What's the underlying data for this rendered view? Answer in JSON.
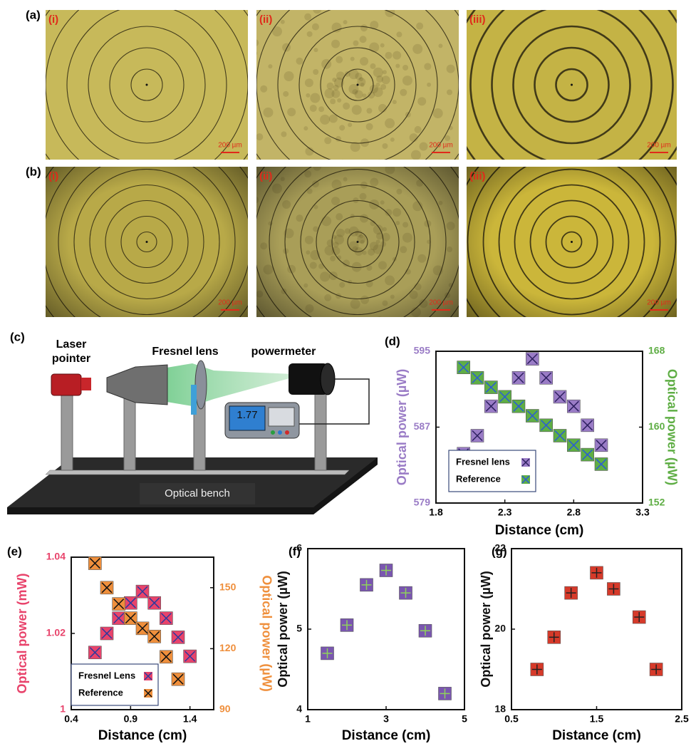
{
  "figure": {
    "row_labels": [
      "(a)",
      "(b)"
    ],
    "micrographs": [
      [
        {
          "label": "(i)",
          "scale": "200 µm"
        },
        {
          "label": "(ii)",
          "scale": "200 µm"
        },
        {
          "label": "(iii)",
          "scale": "200 µm"
        }
      ],
      [
        {
          "label": "(i)",
          "scale": "200 µm"
        },
        {
          "label": "(ii)",
          "scale": "200 µm"
        },
        {
          "label": "(iii)",
          "scale": "200 µm"
        }
      ]
    ]
  },
  "setup": {
    "label": "(c)",
    "laser": [
      "Laser",
      "pointer"
    ],
    "lens": "Fresnel lens",
    "meter": "powermeter",
    "display": "1.77",
    "bench": "Optical bench"
  },
  "chart_data": [
    {
      "type": "scatter",
      "label": "(d)",
      "xlabel": "Distance (cm)",
      "ylabel": "Optical power (µW)",
      "y2label": "Optical power (µW)",
      "xlim": [
        1.8,
        3.3
      ],
      "xticks": [
        1.8,
        2.3,
        2.8,
        3.3
      ],
      "ylim": [
        579,
        595
      ],
      "yticks": [
        579,
        587,
        595
      ],
      "y2lim": [
        152,
        168
      ],
      "y2ticks": [
        152,
        160,
        168
      ],
      "marker": "x-square",
      "legend": "lower-left",
      "series": [
        {
          "name": "Fresnel lens",
          "color": "#9a7cc6",
          "line_color": "#2e2060",
          "x": [
            2.0,
            2.1,
            2.2,
            2.4,
            2.5,
            2.6,
            2.7,
            2.8,
            2.9,
            3.0
          ],
          "values": [
            584.2,
            586.1,
            589.2,
            592.2,
            594.2,
            592.2,
            590.2,
            589.2,
            587.2,
            585.1
          ]
        },
        {
          "name": "Reference",
          "color": "#5fae45",
          "line_color": "#2a5bd7",
          "axis": "y2",
          "x": [
            2.0,
            2.1,
            2.2,
            2.3,
            2.4,
            2.5,
            2.6,
            2.7,
            2.8,
            2.9,
            3.0
          ],
          "values": [
            166.3,
            165.2,
            164.2,
            163.2,
            162.2,
            161.2,
            160.2,
            159.1,
            158.1,
            157.1,
            156.1
          ]
        }
      ]
    },
    {
      "type": "scatter",
      "label": "(e)",
      "xlabel": "Distance (cm)",
      "ylabel": "Optical power (mW)",
      "y2label": "Optical power (µW)",
      "xlim": [
        0.4,
        1.6
      ],
      "xticks": [
        0.4,
        0.9,
        1.4
      ],
      "ylim": [
        1,
        1.04
      ],
      "yticks": [
        1,
        1.02,
        1.04
      ],
      "y2lim": [
        90,
        165
      ],
      "y2ticks": [
        90,
        120,
        150
      ],
      "marker": "x-square",
      "legend": "lower-left",
      "series": [
        {
          "name": "Fresnel Lens",
          "color": "#e8436b",
          "line_color": "#2b3a9e",
          "x": [
            0.6,
            0.7,
            0.8,
            0.9,
            1.0,
            1.1,
            1.2,
            1.3,
            1.4
          ],
          "values": [
            1.015,
            1.02,
            1.024,
            1.028,
            1.031,
            1.028,
            1.024,
            1.019,
            1.014
          ]
        },
        {
          "name": "Reference",
          "color": "#ef8f3c",
          "line_color": "#111111",
          "axis": "y2",
          "x": [
            0.6,
            0.7,
            0.8,
            0.9,
            1.0,
            1.1,
            1.2,
            1.3
          ],
          "values": [
            162,
            150,
            142,
            135,
            130,
            126,
            116,
            105
          ]
        }
      ]
    },
    {
      "type": "scatter",
      "label": "(f)",
      "xlabel": "Distance (cm)",
      "ylabel": "Optical power (µW)",
      "xlim": [
        1,
        5
      ],
      "xticks": [
        1,
        3,
        5
      ],
      "ylim": [
        4,
        6
      ],
      "yticks": [
        4,
        5,
        6
      ],
      "marker": "plus-square",
      "series": [
        {
          "color": "#7a56b0",
          "line_color": "#8fd35a",
          "x": [
            1.5,
            2,
            2.5,
            3,
            3.5,
            4,
            4.5
          ],
          "values": [
            4.7,
            5.05,
            5.55,
            5.73,
            5.45,
            4.98,
            4.2
          ]
        }
      ]
    },
    {
      "type": "scatter",
      "label": "(g)",
      "xlabel": "Distance (cm)",
      "ylabel": "Optical power (µW)",
      "xlim": [
        0.5,
        2.5
      ],
      "xticks": [
        0.5,
        1.5,
        2.5
      ],
      "ylim": [
        18,
        22
      ],
      "yticks": [
        18,
        20,
        22
      ],
      "marker": "plus-square",
      "series": [
        {
          "color": "#d63a2a",
          "line_color": "#222222",
          "x": [
            0.8,
            1.0,
            1.2,
            1.5,
            1.7,
            2.0,
            2.2
          ],
          "values": [
            19,
            19.8,
            20.9,
            21.4,
            21,
            20.3,
            19
          ]
        }
      ]
    }
  ]
}
